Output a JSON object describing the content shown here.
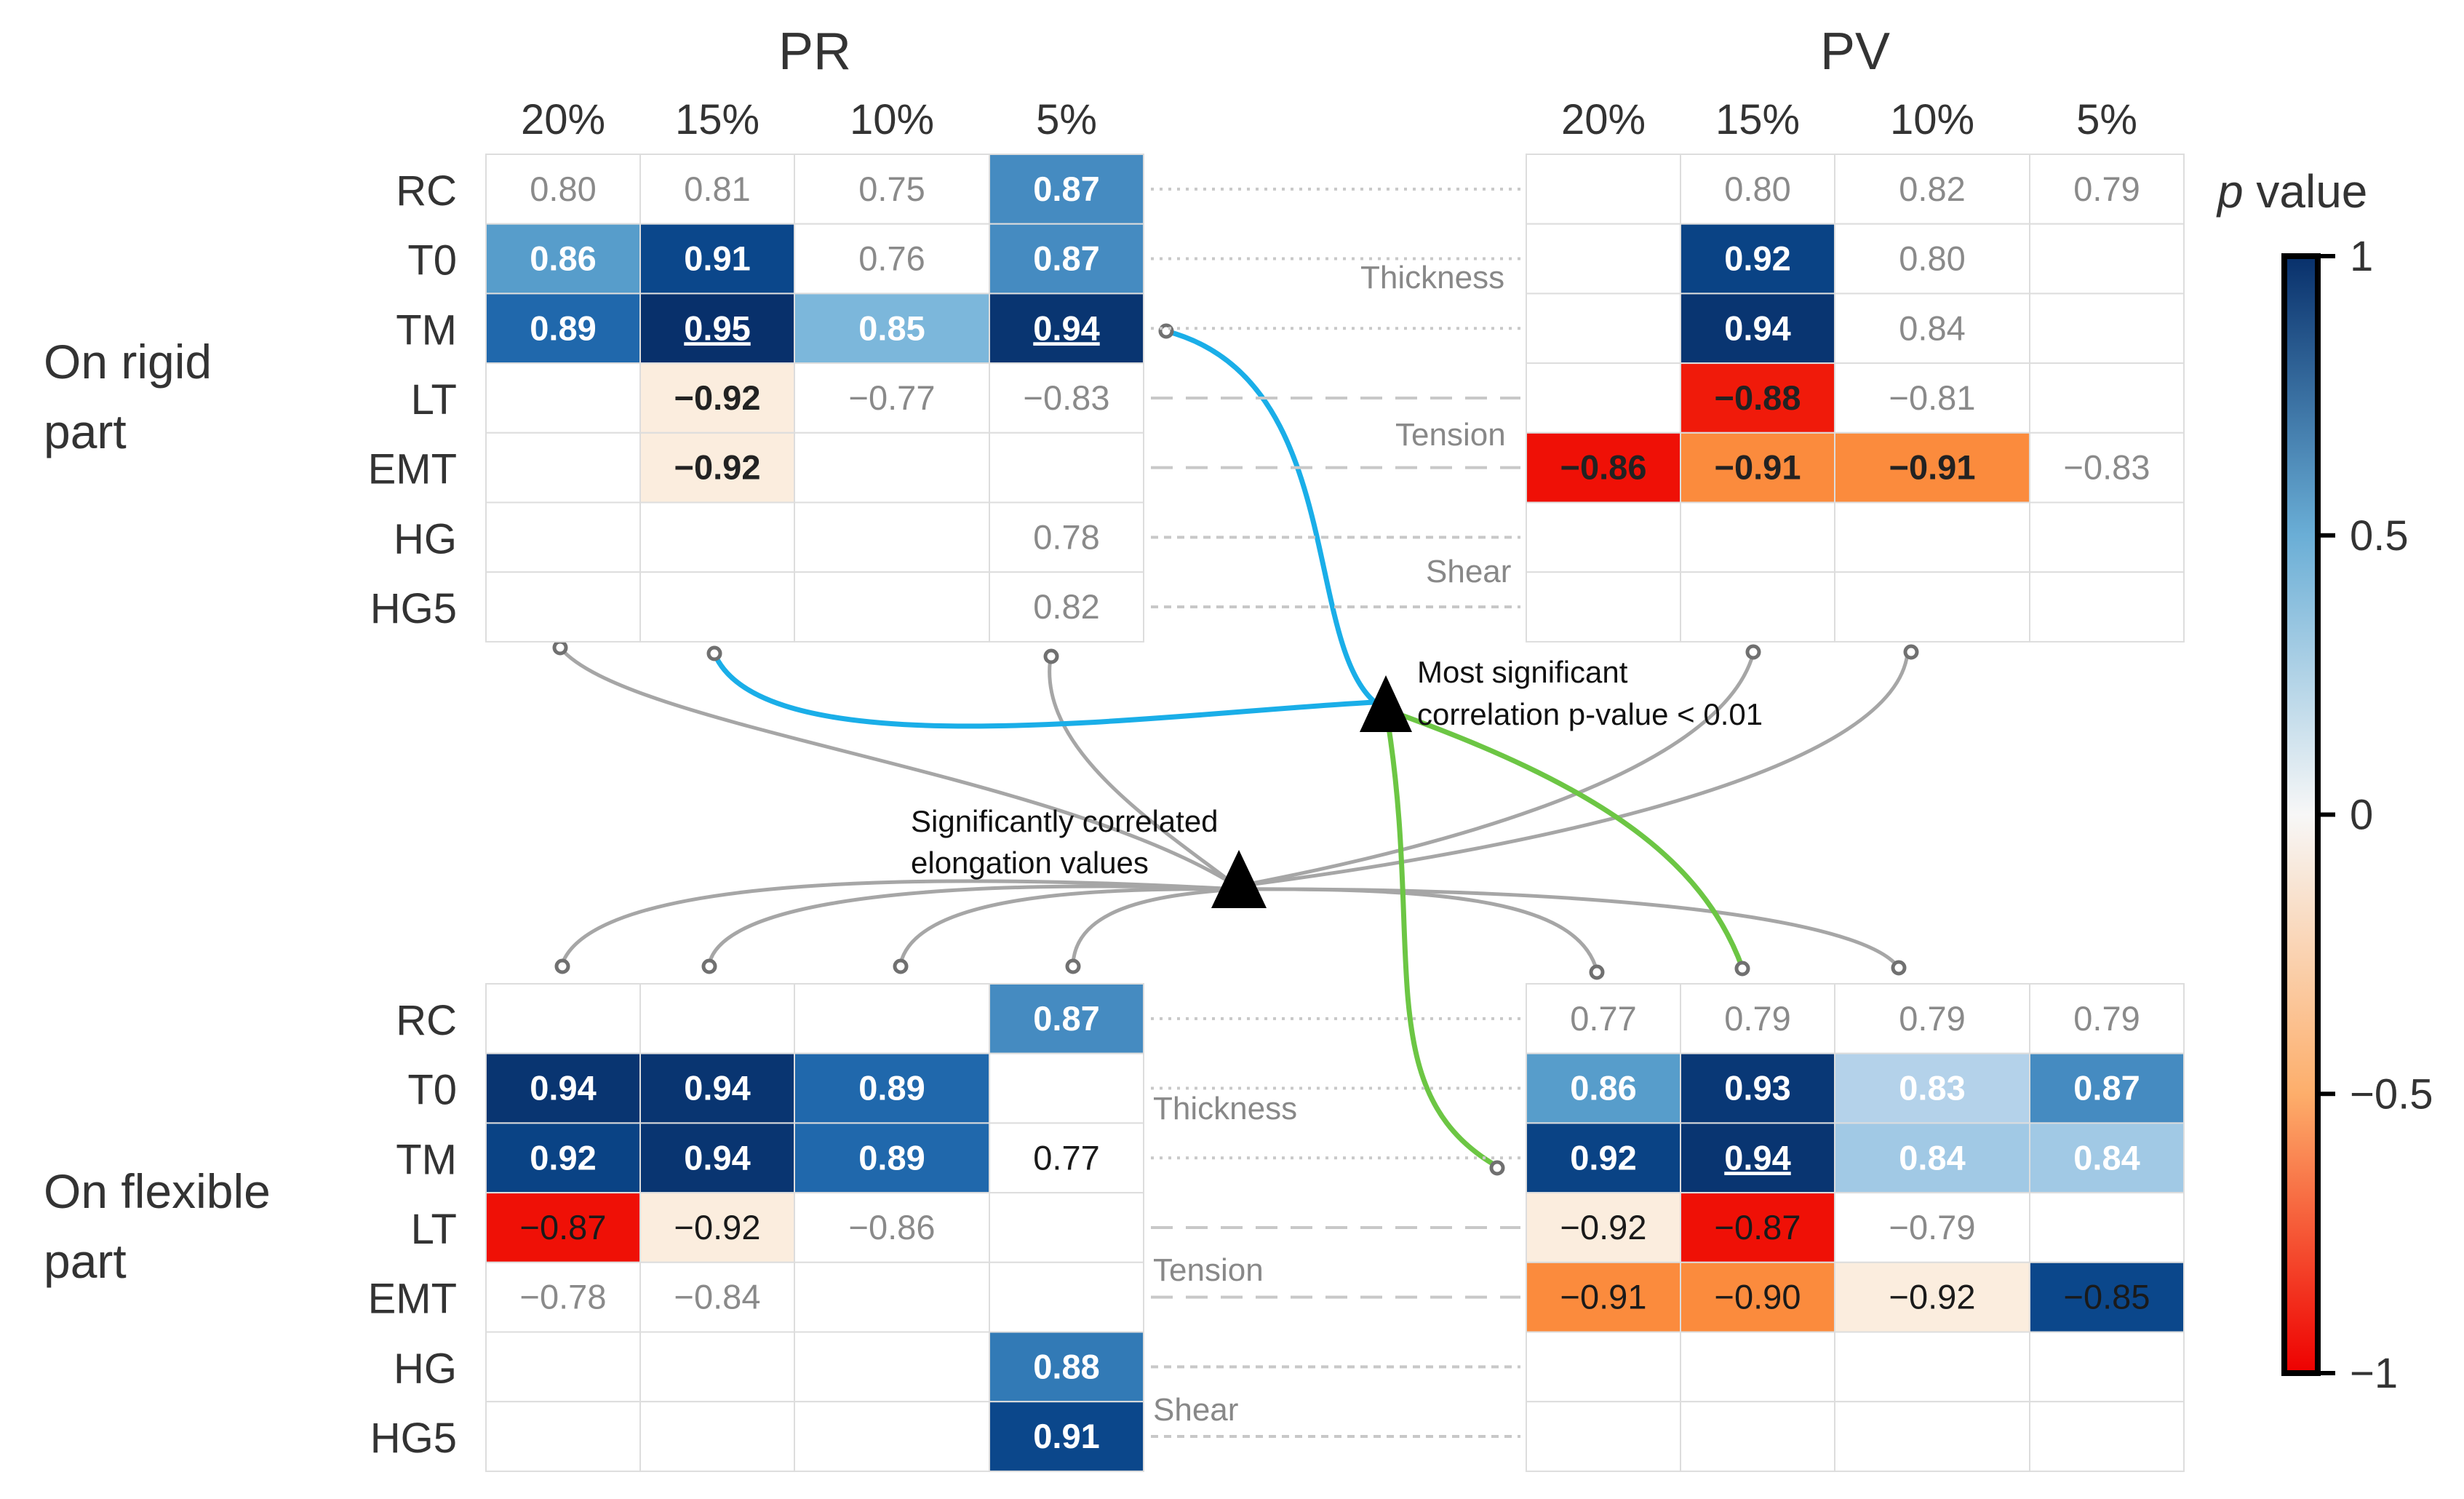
{
  "chart_data": {
    "type": "heatmap",
    "colorbar": {
      "title_italic": "p",
      "title_rest": " value",
      "range": [
        -1,
        1
      ],
      "ticks": [
        {
          "value": 1,
          "label": "1"
        },
        {
          "value": 0.5,
          "label": "0.5"
        },
        {
          "value": 0,
          "label": "0"
        },
        {
          "value": -0.5,
          "label": "−0.5"
        },
        {
          "value": -1,
          "label": "−1"
        }
      ]
    },
    "row_labels": [
      "RC",
      "T0",
      "TM",
      "LT",
      "EMT",
      "HG",
      "HG5"
    ],
    "column_labels": [
      "20%",
      "15%",
      "10%",
      "5%"
    ],
    "group_labels": [
      "Thickness",
      "Tension",
      "Shear"
    ],
    "panels": [
      {
        "id": "rigid-pr",
        "title": "PR",
        "row_title": "On rigid part",
        "cells": [
          [
            {
              "v": "0.80",
              "c": null,
              "s": "n"
            },
            {
              "v": "0.81",
              "c": null,
              "s": "n"
            },
            {
              "v": "0.75",
              "c": null,
              "s": "n"
            },
            {
              "v": "0.87",
              "c": 0.6,
              "s": "b"
            }
          ],
          [
            {
              "v": "0.86",
              "c": 0.55,
              "s": "b"
            },
            {
              "v": "0.91",
              "c": 0.85,
              "s": "b"
            },
            {
              "v": "0.76",
              "c": null,
              "s": "n"
            },
            {
              "v": "0.87",
              "c": 0.6,
              "s": "b"
            }
          ],
          [
            {
              "v": "0.89",
              "c": 0.7,
              "s": "b"
            },
            {
              "v": "0.95",
              "c": 1.0,
              "s": "bu"
            },
            {
              "v": "0.85",
              "c": 0.45,
              "s": "b"
            },
            {
              "v": "0.94",
              "c": 0.97,
              "s": "bu"
            }
          ],
          [
            {
              "v": "",
              "c": null,
              "s": "n"
            },
            {
              "v": "−0.92",
              "c": -0.15,
              "s": "b"
            },
            {
              "v": "−0.77",
              "c": null,
              "s": "n"
            },
            {
              "v": "−0.83",
              "c": null,
              "s": "n"
            }
          ],
          [
            {
              "v": "",
              "c": null,
              "s": "n"
            },
            {
              "v": "−0.92",
              "c": -0.15,
              "s": "b"
            },
            {
              "v": "",
              "c": null,
              "s": "n"
            },
            {
              "v": "",
              "c": null,
              "s": "n"
            }
          ],
          [
            {
              "v": "",
              "c": null,
              "s": "n"
            },
            {
              "v": "",
              "c": null,
              "s": "n"
            },
            {
              "v": "",
              "c": null,
              "s": "n"
            },
            {
              "v": "0.78",
              "c": null,
              "s": "n"
            }
          ],
          [
            {
              "v": "",
              "c": null,
              "s": "n"
            },
            {
              "v": "",
              "c": null,
              "s": "n"
            },
            {
              "v": "",
              "c": null,
              "s": "n"
            },
            {
              "v": "0.82",
              "c": null,
              "s": "n"
            }
          ]
        ]
      },
      {
        "id": "rigid-pv",
        "title": "PV",
        "row_title": "",
        "cells": [
          [
            {
              "v": "",
              "c": null,
              "s": "n"
            },
            {
              "v": "0.80",
              "c": null,
              "s": "n"
            },
            {
              "v": "0.82",
              "c": null,
              "s": "n"
            },
            {
              "v": "0.79",
              "c": null,
              "s": "n"
            }
          ],
          [
            {
              "v": "",
              "c": null,
              "s": "n"
            },
            {
              "v": "0.92",
              "c": 0.88,
              "s": "b"
            },
            {
              "v": "0.80",
              "c": null,
              "s": "n"
            },
            {
              "v": "",
              "c": null,
              "s": "n"
            }
          ],
          [
            {
              "v": "",
              "c": null,
              "s": "n"
            },
            {
              "v": "0.94",
              "c": 0.97,
              "s": "b"
            },
            {
              "v": "0.84",
              "c": null,
              "s": "n"
            },
            {
              "v": "",
              "c": null,
              "s": "n"
            }
          ],
          [
            {
              "v": "",
              "c": null,
              "s": "n"
            },
            {
              "v": "−0.88",
              "c": -0.95,
              "s": "b"
            },
            {
              "v": "−0.81",
              "c": null,
              "s": "n"
            },
            {
              "v": "",
              "c": null,
              "s": "n"
            }
          ],
          [
            {
              "v": "−0.86",
              "c": -0.97,
              "s": "b"
            },
            {
              "v": "−0.91",
              "c": -0.7,
              "s": "b"
            },
            {
              "v": "−0.91",
              "c": -0.7,
              "s": "b"
            },
            {
              "v": "−0.83",
              "c": null,
              "s": "n"
            }
          ],
          [
            {
              "v": "",
              "c": null,
              "s": "n"
            },
            {
              "v": "",
              "c": null,
              "s": "n"
            },
            {
              "v": "",
              "c": null,
              "s": "n"
            },
            {
              "v": "",
              "c": null,
              "s": "n"
            }
          ],
          [
            {
              "v": "",
              "c": null,
              "s": "n"
            },
            {
              "v": "",
              "c": null,
              "s": "n"
            },
            {
              "v": "",
              "c": null,
              "s": "n"
            },
            {
              "v": "",
              "c": null,
              "s": "n"
            }
          ]
        ]
      },
      {
        "id": "flex-pr",
        "title": "",
        "row_title": "On flexible part",
        "cells": [
          [
            {
              "v": "",
              "c": null,
              "s": "n"
            },
            {
              "v": "",
              "c": null,
              "s": "n"
            },
            {
              "v": "",
              "c": null,
              "s": "n"
            },
            {
              "v": "0.87",
              "c": 0.6,
              "s": "b"
            }
          ],
          [
            {
              "v": "0.94",
              "c": 0.97,
              "s": "b"
            },
            {
              "v": "0.94",
              "c": 0.97,
              "s": "b"
            },
            {
              "v": "0.89",
              "c": 0.7,
              "s": "b"
            },
            {
              "v": "",
              "c": null,
              "s": "n"
            }
          ],
          [
            {
              "v": "0.92",
              "c": 0.88,
              "s": "b"
            },
            {
              "v": "0.94",
              "c": 0.97,
              "s": "b"
            },
            {
              "v": "0.89",
              "c": 0.7,
              "s": "b"
            },
            {
              "v": "0.77",
              "c": null,
              "s": "d"
            }
          ],
          [
            {
              "v": "−0.87",
              "c": -0.97,
              "s": "d"
            },
            {
              "v": "−0.92",
              "c": -0.15,
              "s": "d"
            },
            {
              "v": "−0.86",
              "c": null,
              "s": "n"
            },
            {
              "v": "",
              "c": null,
              "s": "n"
            }
          ],
          [
            {
              "v": "−0.78",
              "c": null,
              "s": "n"
            },
            {
              "v": "−0.84",
              "c": null,
              "s": "n"
            },
            {
              "v": "",
              "c": null,
              "s": "n"
            },
            {
              "v": "",
              "c": null,
              "s": "n"
            }
          ],
          [
            {
              "v": "",
              "c": null,
              "s": "n"
            },
            {
              "v": "",
              "c": null,
              "s": "n"
            },
            {
              "v": "",
              "c": null,
              "s": "n"
            },
            {
              "v": "0.88",
              "c": 0.65,
              "s": "b"
            }
          ],
          [
            {
              "v": "",
              "c": null,
              "s": "n"
            },
            {
              "v": "",
              "c": null,
              "s": "n"
            },
            {
              "v": "",
              "c": null,
              "s": "n"
            },
            {
              "v": "0.91",
              "c": 0.85,
              "s": "b"
            }
          ]
        ]
      },
      {
        "id": "flex-pv",
        "title": "",
        "row_title": "",
        "cells": [
          [
            {
              "v": "0.77",
              "c": null,
              "s": "n"
            },
            {
              "v": "0.79",
              "c": null,
              "s": "n"
            },
            {
              "v": "0.79",
              "c": null,
              "s": "n"
            },
            {
              "v": "0.79",
              "c": null,
              "s": "n"
            }
          ],
          [
            {
              "v": "0.86",
              "c": 0.55,
              "s": "b"
            },
            {
              "v": "0.93",
              "c": 0.95,
              "s": "b"
            },
            {
              "v": "0.83",
              "c": 0.3,
              "s": "b"
            },
            {
              "v": "0.87",
              "c": 0.6,
              "s": "b"
            }
          ],
          [
            {
              "v": "0.92",
              "c": 0.88,
              "s": "b"
            },
            {
              "v": "0.94",
              "c": 0.97,
              "s": "bu"
            },
            {
              "v": "0.84",
              "c": 0.35,
              "s": "b"
            },
            {
              "v": "0.84",
              "c": 0.35,
              "s": "b"
            }
          ],
          [
            {
              "v": "−0.92",
              "c": -0.15,
              "s": "d"
            },
            {
              "v": "−0.87",
              "c": -0.97,
              "s": "d"
            },
            {
              "v": "−0.79",
              "c": null,
              "s": "n"
            },
            {
              "v": "",
              "c": null,
              "s": "n"
            }
          ],
          [
            {
              "v": "−0.91",
              "c": -0.7,
              "s": "d"
            },
            {
              "v": "−0.90",
              "c": -0.7,
              "s": "d"
            },
            {
              "v": "−0.92",
              "c": -0.15,
              "s": "d"
            },
            {
              "v": "−0.85",
              "c": 0.85,
              "s": "d"
            }
          ],
          [
            {
              "v": "",
              "c": null,
              "s": "n"
            },
            {
              "v": "",
              "c": null,
              "s": "n"
            },
            {
              "v": "",
              "c": null,
              "s": "n"
            },
            {
              "v": "",
              "c": null,
              "s": "n"
            }
          ],
          [
            {
              "v": "",
              "c": null,
              "s": "n"
            },
            {
              "v": "",
              "c": null,
              "s": "n"
            },
            {
              "v": "",
              "c": null,
              "s": "n"
            },
            {
              "v": "",
              "c": null,
              "s": "n"
            }
          ]
        ]
      }
    ],
    "annotations": {
      "significant_line1": "Significantly correlated",
      "significant_line2": "elongation values",
      "most_line1": "Most significant",
      "most_line2": "correlation  p-value < 0.01"
    },
    "colors": {
      "blue_link": "#1aaee8",
      "green_link": "#6cc644",
      "grey_link": "#a6a6a6",
      "plain_text": "#8a8a8a",
      "grid": "#dddddd"
    }
  }
}
